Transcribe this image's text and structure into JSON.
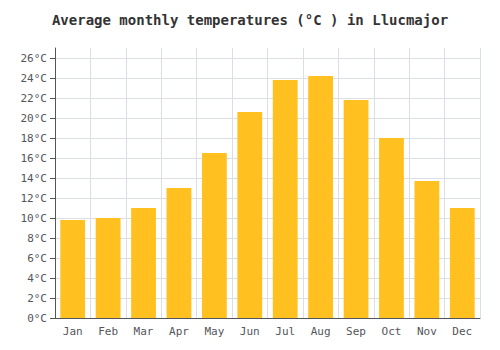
{
  "chart_data": {
    "type": "bar",
    "title": "Average monthly temperatures (°C ) in Llucmajor",
    "categories": [
      "Jan",
      "Feb",
      "Mar",
      "Apr",
      "May",
      "Jun",
      "Jul",
      "Aug",
      "Sep",
      "Oct",
      "Nov",
      "Dec"
    ],
    "values": [
      9.8,
      10.0,
      11.0,
      13.0,
      16.5,
      20.6,
      23.8,
      24.2,
      21.8,
      18.0,
      13.7,
      11.0
    ],
    "color": "#FFC020",
    "ylim": [
      0,
      27
    ],
    "yticks": [
      {
        "value": 0,
        "label": "0°C"
      },
      {
        "value": 2,
        "label": "2°C"
      },
      {
        "value": 4,
        "label": "4°C"
      },
      {
        "value": 6,
        "label": "6°C"
      },
      {
        "value": 8,
        "label": "8°C"
      },
      {
        "value": 10,
        "label": "10°C"
      },
      {
        "value": 12,
        "label": "12°C"
      },
      {
        "value": 14,
        "label": "14°C"
      },
      {
        "value": 16,
        "label": "16°C"
      },
      {
        "value": 18,
        "label": "18°C"
      },
      {
        "value": 20,
        "label": "20°C"
      },
      {
        "value": 22,
        "label": "22°C"
      },
      {
        "value": 24,
        "label": "24°C"
      },
      {
        "value": 26,
        "label": "26°C"
      }
    ],
    "grid": true
  }
}
